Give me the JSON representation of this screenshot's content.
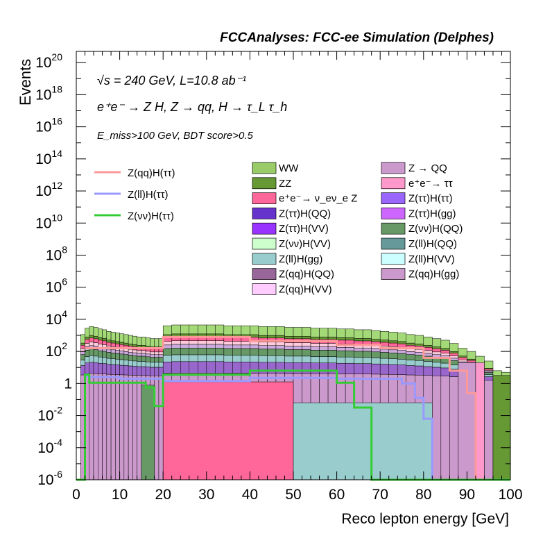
{
  "chart_data": {
    "type": "bar",
    "title": "FCCAnalyses: FCC-ee Simulation (Delphes)",
    "xlabel": "Reco lepton energy [GeV]",
    "ylabel": "Events",
    "xlim": [
      0,
      100
    ],
    "ylim_log10": [
      -6,
      20.7
    ],
    "log_y": true,
    "x_ticks": [
      0,
      10,
      20,
      30,
      40,
      50,
      60,
      70,
      80,
      90,
      100
    ],
    "y_tick_exponents": [
      20,
      18,
      16,
      14,
      12,
      10,
      8,
      6,
      4,
      2,
      0,
      -2,
      -4,
      -6
    ],
    "y_tick_labels": [
      "10^20",
      "10^18",
      "10^16",
      "10^14",
      "10^12",
      "10^10",
      "10^8",
      "10^6",
      "10^4",
      "10^2",
      "1",
      "10^-2",
      "10^-4",
      "10^-6"
    ],
    "annotations": [
      "√s = 240 GeV, L=10.8 ab⁻¹",
      "e⁺e⁻ → Z H, Z → qq, H → τ_L τ_h",
      "E_miss>100 GeV, BDT score>0.5"
    ],
    "signal_series": [
      {
        "name": "Z(qq)H(ττ)",
        "color": "#ff9999",
        "x_edges": [
          2,
          20,
          40,
          60,
          70,
          80,
          86,
          90,
          92,
          100
        ],
        "log10_values": [
          2.2,
          2.9,
          2.65,
          2.4,
          2.2,
          1.6,
          0.8,
          -0.6,
          -6
        ]
      },
      {
        "name": "Z(ll)H(ττ)",
        "color": "#9999ff",
        "x_edges": [
          2,
          10,
          20,
          40,
          60,
          75,
          78,
          80,
          82,
          100
        ],
        "log10_values": [
          0.4,
          0.3,
          0.15,
          0.35,
          0.3,
          0.0,
          -0.9,
          -2.2,
          -6
        ]
      },
      {
        "name": "Z(νν)H(ττ)",
        "color": "#33cc33",
        "x_edges": [
          0,
          2,
          3,
          16,
          18,
          20,
          40,
          60,
          64,
          68,
          100
        ],
        "log10_values": [
          -6,
          0.55,
          0.05,
          -0.25,
          -1.4,
          0.55,
          0.8,
          0.05,
          -1.5,
          -6
        ]
      }
    ],
    "stack_colors": [
      "#a3d977",
      "#669933",
      "#ff6699",
      "#ffccdd",
      "#ccaadd",
      "#669966",
      "#99cccc",
      "#9966cc",
      "#cc99cc"
    ],
    "stack_envelope": {
      "x_edges": [
        0,
        1,
        2,
        3,
        4,
        5,
        6,
        7,
        8,
        9,
        10,
        11,
        12,
        13,
        14,
        15,
        16,
        17,
        18,
        19,
        20,
        22,
        24,
        26,
        28,
        30,
        32,
        34,
        36,
        38,
        40,
        42,
        44,
        46,
        48,
        50,
        52,
        54,
        56,
        58,
        60,
        62,
        64,
        66,
        68,
        70,
        72,
        74,
        76,
        78,
        80,
        82,
        84,
        86,
        88,
        90,
        92,
        94,
        96,
        98,
        100
      ],
      "log10_top": [
        -6,
        3.05,
        3.45,
        3.55,
        3.5,
        3.4,
        3.35,
        3.25,
        3.2,
        3.15,
        3.1,
        3.05,
        3.0,
        2.95,
        2.9,
        2.9,
        2.85,
        2.8,
        2.8,
        2.8,
        3.6,
        3.65,
        3.65,
        3.65,
        3.65,
        3.65,
        3.65,
        3.6,
        3.6,
        3.6,
        3.6,
        3.55,
        3.55,
        3.55,
        3.5,
        3.5,
        3.5,
        3.45,
        3.45,
        3.45,
        3.4,
        3.4,
        3.35,
        3.35,
        3.3,
        3.25,
        3.2,
        3.15,
        3.05,
        3.0,
        2.9,
        2.8,
        2.7,
        2.5,
        2.2,
        2.0,
        1.7,
        1.4,
        0.8,
        0.7
      ]
    },
    "legend_left": [
      "Z(qq)H(ττ)",
      "Z(ll)H(ττ)",
      "Z(νν)H(ττ)"
    ],
    "legend_mid": [
      {
        "label": "WW",
        "color": "#99cc66"
      },
      {
        "label": "ZZ",
        "color": "#669933"
      },
      {
        "label": "e⁺e⁻→ ν_eν_e Z",
        "color": "#ff6699"
      },
      {
        "label": "Z(ττ)H(QQ)",
        "color": "#6633cc"
      },
      {
        "label": "Z(ττ)H(VV)",
        "color": "#9933ff"
      },
      {
        "label": "Z(νν)H(VV)",
        "color": "#ccffcc"
      },
      {
        "label": "Z(ll)H(gg)",
        "color": "#99cccc"
      },
      {
        "label": "Z(qq)H(QQ)",
        "color": "#996699"
      },
      {
        "label": "Z(qq)H(VV)",
        "color": "#ffccff"
      }
    ],
    "legend_right": [
      {
        "label": "Z → QQ",
        "color": "#cc99cc"
      },
      {
        "label": "e⁺e⁻→ ττ",
        "color": "#ff99cc"
      },
      {
        "label": "Z(ττ)H(ττ)",
        "color": "#9966ff"
      },
      {
        "label": "Z(ττ)H(gg)",
        "color": "#cc66ff"
      },
      {
        "label": "Z(νν)H(QQ)",
        "color": "#669966"
      },
      {
        "label": "Z(ll)H(QQ)",
        "color": "#669999"
      },
      {
        "label": "Z(ll)H(VV)",
        "color": "#ccffff"
      },
      {
        "label": "Z(qq)H(gg)",
        "color": "#cc99cc"
      }
    ],
    "pink_spikes": {
      "x_edges": [
        20,
        24,
        32,
        40,
        44,
        48,
        50,
        60,
        62,
        82,
        84
      ],
      "comment": ""
    }
  }
}
